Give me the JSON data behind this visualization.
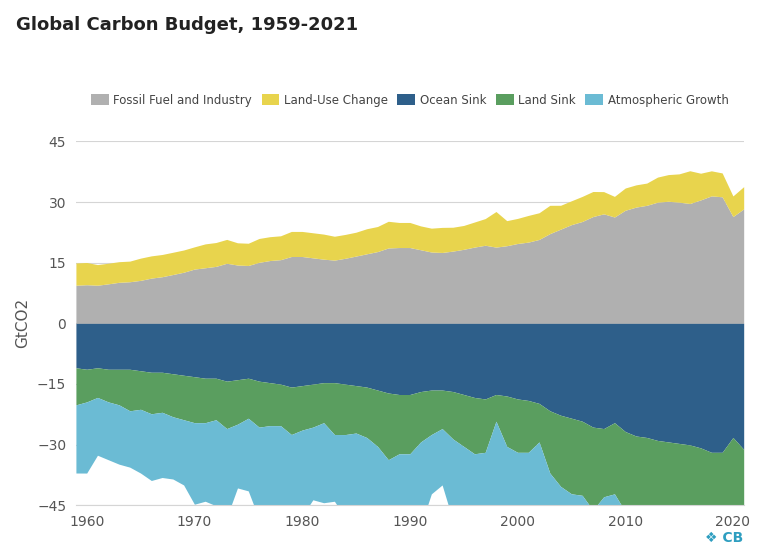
{
  "title": "Global Carbon Budget, 1959-2021",
  "years": [
    1959,
    1960,
    1961,
    1962,
    1963,
    1964,
    1965,
    1966,
    1967,
    1968,
    1969,
    1970,
    1971,
    1972,
    1973,
    1974,
    1975,
    1976,
    1977,
    1978,
    1979,
    1980,
    1981,
    1982,
    1983,
    1984,
    1985,
    1986,
    1987,
    1988,
    1989,
    1990,
    1991,
    1992,
    1993,
    1994,
    1995,
    1996,
    1997,
    1998,
    1999,
    2000,
    2001,
    2002,
    2003,
    2004,
    2005,
    2006,
    2007,
    2008,
    2009,
    2010,
    2011,
    2012,
    2013,
    2014,
    2015,
    2016,
    2017,
    2018,
    2019,
    2020,
    2021
  ],
  "fossil_fuel": [
    9.43,
    9.55,
    9.43,
    9.77,
    10.15,
    10.29,
    10.63,
    11.19,
    11.53,
    12.08,
    12.64,
    13.42,
    13.75,
    14.09,
    14.86,
    14.42,
    14.31,
    15.09,
    15.53,
    15.75,
    16.53,
    16.53,
    16.2,
    15.87,
    15.64,
    16.09,
    16.64,
    17.2,
    17.75,
    18.64,
    18.75,
    18.75,
    18.2,
    17.64,
    17.53,
    17.87,
    18.31,
    18.86,
    19.31,
    18.86,
    19.2,
    19.75,
    20.09,
    20.75,
    22.19,
    23.3,
    24.41,
    25.19,
    26.41,
    27.08,
    26.3,
    27.97,
    28.75,
    29.19,
    29.97,
    30.19,
    29.97,
    29.64,
    30.53,
    31.52,
    31.3,
    26.41,
    28.31
  ],
  "land_use": [
    5.5,
    5.5,
    5.1,
    5.1,
    5.1,
    5.1,
    5.5,
    5.5,
    5.5,
    5.5,
    5.5,
    5.5,
    5.9,
    5.9,
    5.9,
    5.5,
    5.5,
    5.9,
    5.9,
    5.9,
    6.2,
    6.2,
    6.2,
    6.2,
    5.9,
    5.9,
    5.9,
    6.2,
    6.2,
    6.6,
    6.2,
    6.2,
    5.9,
    5.9,
    6.2,
    5.9,
    5.9,
    6.2,
    6.6,
    8.8,
    6.2,
    6.2,
    6.6,
    6.6,
    7.0,
    5.9,
    5.9,
    6.2,
    6.2,
    5.5,
    5.1,
    5.5,
    5.5,
    5.5,
    6.2,
    6.6,
    7.0,
    8.1,
    6.6,
    6.2,
    5.9,
    5.1,
    5.5
  ],
  "ocean_sink": [
    -10.99,
    -11.36,
    -10.99,
    -11.36,
    -11.36,
    -11.36,
    -11.73,
    -12.1,
    -12.1,
    -12.47,
    -12.84,
    -13.2,
    -13.57,
    -13.57,
    -14.3,
    -13.94,
    -13.57,
    -14.3,
    -14.67,
    -15.04,
    -15.77,
    -15.4,
    -15.04,
    -14.67,
    -14.67,
    -15.04,
    -15.4,
    -15.77,
    -16.5,
    -17.23,
    -17.6,
    -17.6,
    -16.87,
    -16.5,
    -16.5,
    -16.87,
    -17.6,
    -18.33,
    -18.7,
    -17.6,
    -17.97,
    -18.7,
    -19.07,
    -19.8,
    -21.63,
    -22.73,
    -23.46,
    -24.2,
    -25.66,
    -26.03,
    -24.57,
    -26.76,
    -27.86,
    -28.23,
    -28.96,
    -29.33,
    -29.7,
    -30.07,
    -30.8,
    -31.9,
    -31.9,
    -28.23,
    -31.17
  ],
  "land_sink": [
    -9.17,
    -8.07,
    -7.33,
    -8.07,
    -8.8,
    -10.27,
    -9.53,
    -10.27,
    -9.9,
    -10.63,
    -11.0,
    -11.37,
    -11.0,
    -10.27,
    -11.73,
    -11.0,
    -9.9,
    -11.37,
    -10.63,
    -10.27,
    -11.73,
    -11.0,
    -10.63,
    -9.9,
    -12.83,
    -12.47,
    -11.73,
    -12.47,
    -13.93,
    -16.5,
    -14.67,
    -14.67,
    -12.47,
    -11.0,
    -9.53,
    -11.73,
    -12.83,
    -13.93,
    -13.2,
    -6.6,
    -12.47,
    -13.2,
    -12.83,
    -9.53,
    -15.4,
    -17.6,
    -18.7,
    -18.33,
    -20.53,
    -16.87,
    -17.6,
    -19.8,
    -21.27,
    -20.9,
    -22.0,
    -23.1,
    -20.9,
    -21.27,
    -22.0,
    -21.27,
    -22.0,
    -18.7,
    -20.9
  ],
  "atm_growth": [
    -16.86,
    -17.6,
    -14.3,
    -14.3,
    -14.67,
    -13.94,
    -15.77,
    -16.5,
    -16.13,
    -15.4,
    -16.13,
    -20.17,
    -19.43,
    -21.27,
    -22.0,
    -15.77,
    -17.97,
    -22.73,
    -20.9,
    -21.63,
    -24.93,
    -21.27,
    -17.97,
    -19.8,
    -16.5,
    -20.53,
    -20.17,
    -20.17,
    -23.47,
    -27.13,
    -20.17,
    -22.0,
    -20.9,
    -14.67,
    -13.94,
    -20.17,
    -20.9,
    -21.27,
    -23.1,
    -30.8,
    -19.07,
    -22.37,
    -22.37,
    -31.17,
    -27.87,
    -22.0,
    -23.47,
    -22.73,
    -23.47,
    -23.1,
    -16.87,
    -28.6,
    -25.67,
    -22.73,
    -27.5,
    -26.77,
    -23.83,
    -30.07,
    -27.5,
    -27.5,
    -23.83,
    -18.33,
    -22.37
  ],
  "colors": {
    "fossil_fuel": "#b0b0b0",
    "land_use": "#e8d44d",
    "ocean_sink": "#2e5f8a",
    "land_sink": "#5a9e5f",
    "atm_growth": "#6bbbd4"
  },
  "ylim": [
    -45,
    45
  ],
  "yticks": [
    -45,
    -30,
    -15,
    0,
    15,
    30,
    45
  ],
  "ylabel": "GtCO2",
  "bg_color": "#ffffff",
  "grid_color": "#d5d5d5"
}
